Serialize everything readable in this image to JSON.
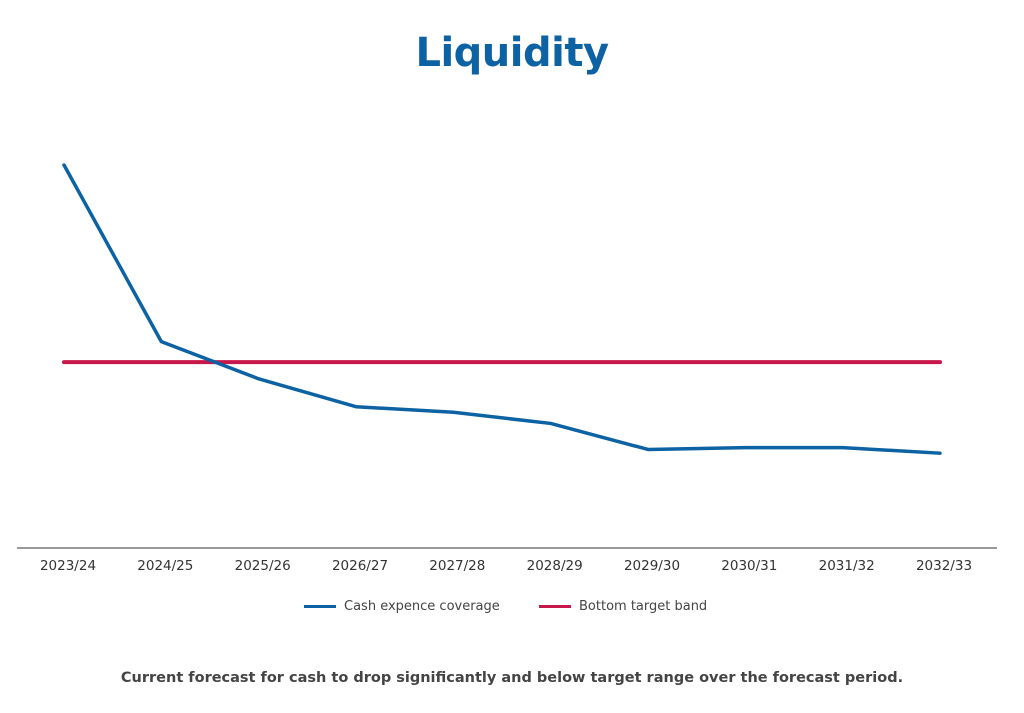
{
  "chart_data": {
    "type": "line",
    "title": "Liquidity",
    "caption": "Current forecast for cash to drop significantly and below target range over the forecast period.",
    "xlabel": "",
    "ylabel": "",
    "categories": [
      "2023/24",
      "2024/25",
      "2025/26",
      "2026/27",
      "2027/28",
      "2028/29",
      "2029/30",
      "2030/31",
      "2031/32",
      "2032/33"
    ],
    "series": [
      {
        "name": "Cash expence coverage",
        "color": "#0d62a3",
        "values": [
          2.06,
          1.11,
          0.91,
          0.76,
          0.73,
          0.67,
          0.53,
          0.54,
          0.54,
          0.51
        ]
      },
      {
        "name": "Bottom target band",
        "color": "#c8174a",
        "values": [
          1,
          1,
          1,
          1,
          1,
          1,
          1,
          1,
          1,
          1
        ]
      }
    ],
    "ylim": [
      0,
      2.2
    ],
    "grid": false,
    "legend_position": "bottom"
  }
}
